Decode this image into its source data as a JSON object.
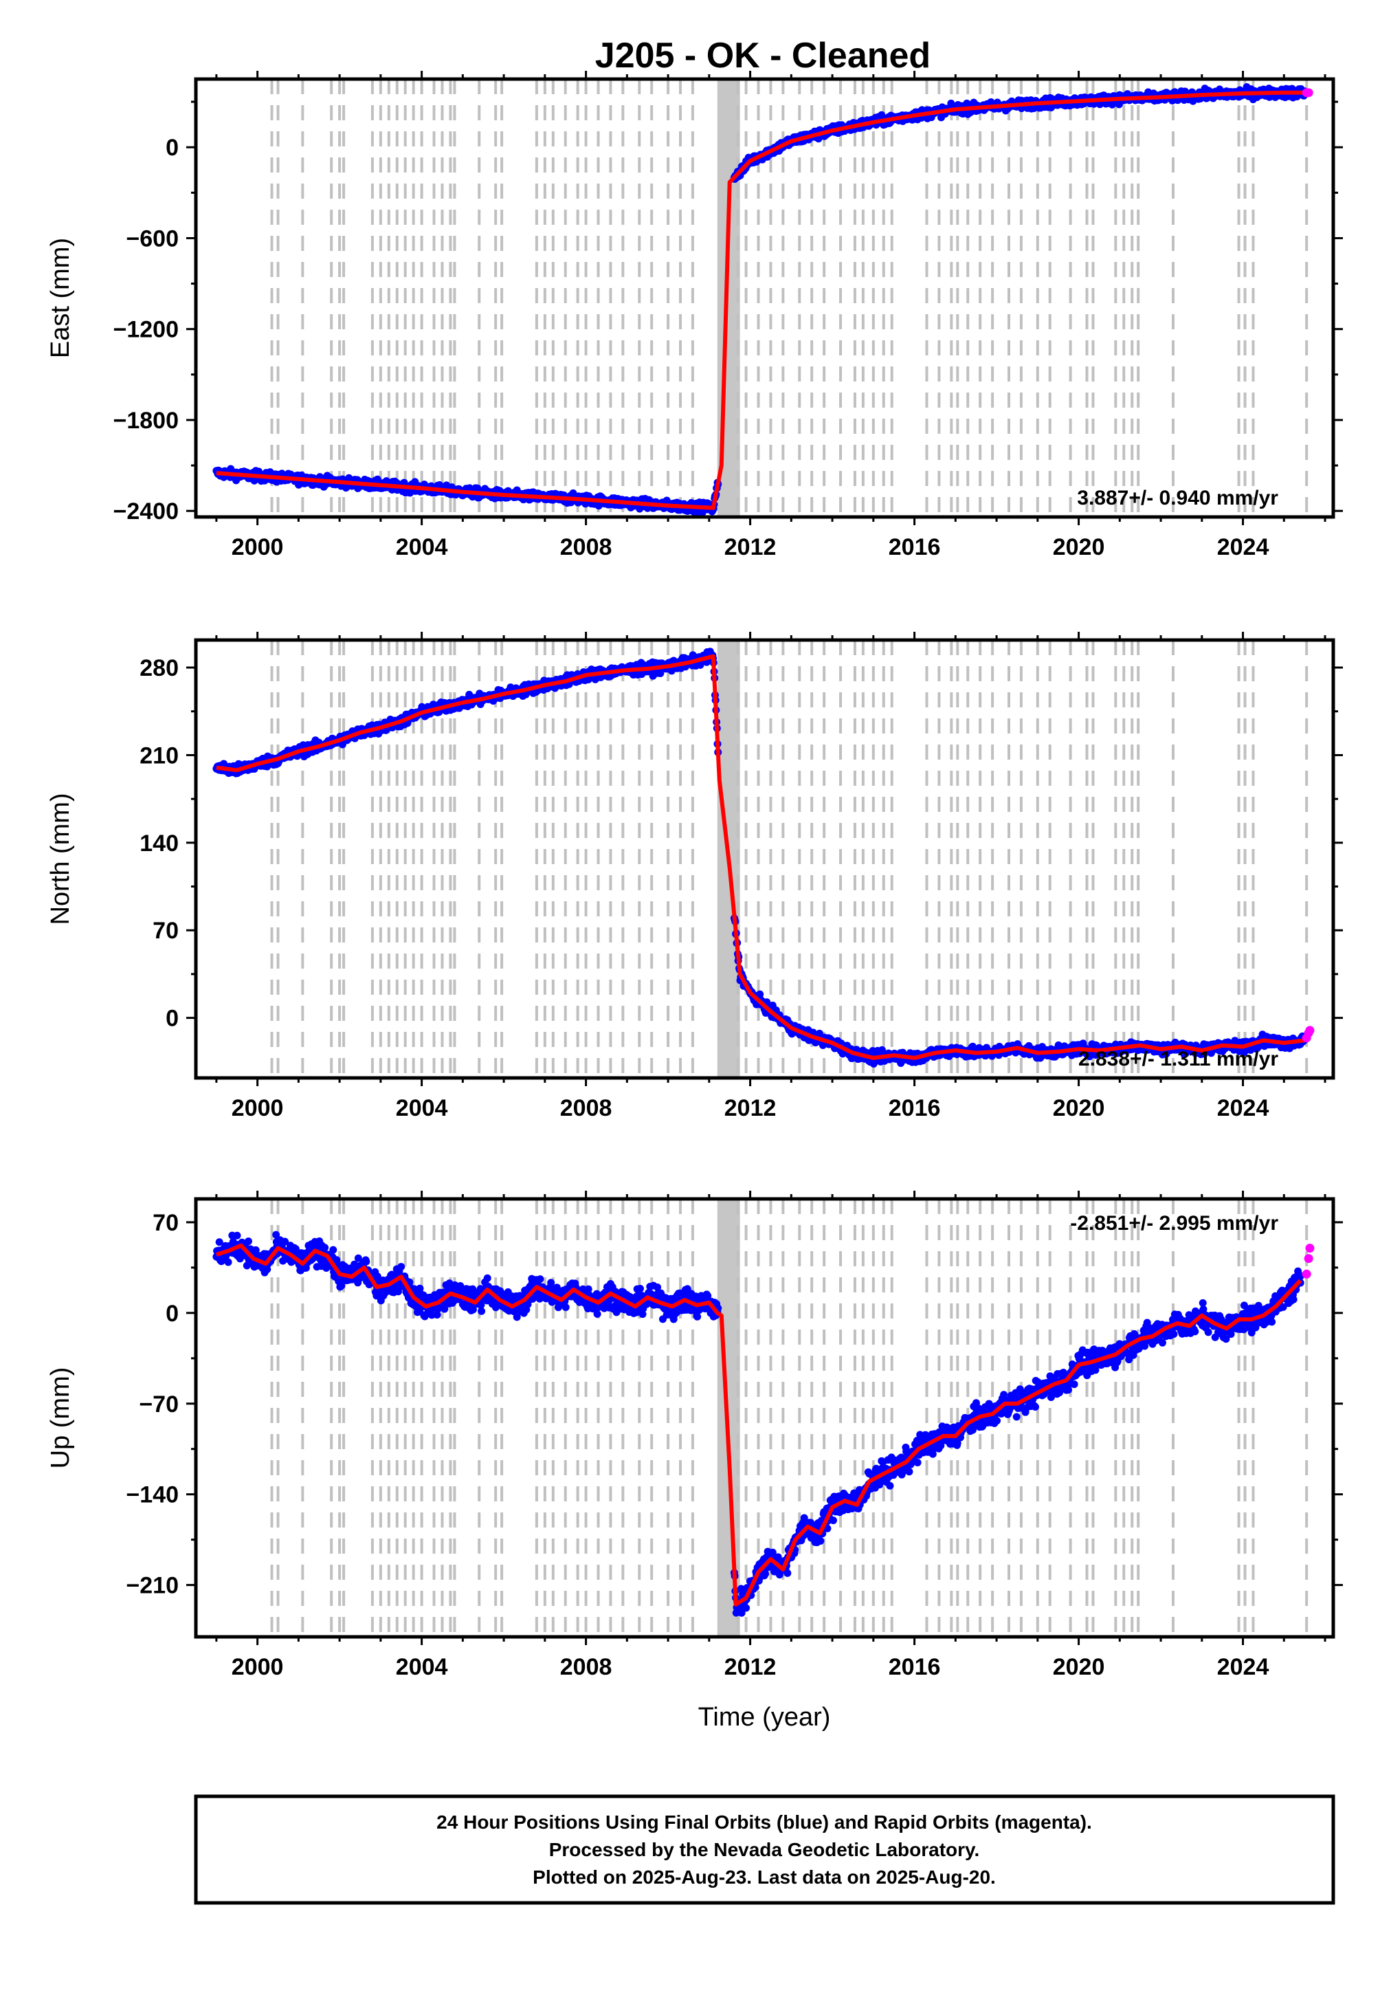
{
  "figure": {
    "title": "J205  - OK - Cleaned",
    "xlabel": "Time (year)",
    "footer": [
      "24 Hour Positions Using Final Orbits (blue) and Rapid Orbits (magenta).",
      "Processed by the Nevada Geodetic Laboratory.",
      "Plotted on 2025-Aug-23. Last data on 2025-Aug-20."
    ]
  },
  "colors": {
    "final_orbits": "#0000ff",
    "rapid_orbits": "#ff00ff",
    "model_fit": "#ff0000",
    "event_lines": "#c0c0c0"
  },
  "event_lines_years": [
    2000.35,
    2000.5,
    2001.1,
    2001.8,
    2002.0,
    2002.1,
    2002.8,
    2003.0,
    2003.2,
    2003.4,
    2003.6,
    2003.8,
    2004.0,
    2004.3,
    2004.5,
    2004.7,
    2004.8,
    2005.4,
    2005.8,
    2005.95,
    2006.8,
    2007.0,
    2007.2,
    2007.5,
    2007.8,
    2008.0,
    2008.3,
    2008.6,
    2008.9,
    2009.3,
    2009.6,
    2010.0,
    2010.3,
    2010.6,
    2011.7,
    2011.9,
    2012.2,
    2012.5,
    2012.8,
    2013.2,
    2013.5,
    2013.8,
    2014.2,
    2014.55,
    2014.75,
    2015.0,
    2015.25,
    2015.45,
    2016.3,
    2016.6,
    2016.9,
    2017.05,
    2017.3,
    2017.6,
    2017.9,
    2018.3,
    2018.6,
    2019.0,
    2019.3,
    2019.8,
    2020.2,
    2020.35,
    2020.9,
    2021.1,
    2021.3,
    2021.45,
    2022.3,
    2023.9,
    2024.05,
    2024.25,
    2025.55
  ],
  "chart_data": [
    {
      "type": "scatter",
      "component": "East",
      "ylabel": "East (mm)",
      "xlim": [
        1998.5,
        2026.2
      ],
      "ylim": [
        -2440,
        450
      ],
      "xticks": [
        2000,
        2004,
        2008,
        2012,
        2016,
        2020,
        2024
      ],
      "yticks": [
        0,
        -600,
        -1200,
        -1800,
        -2400
      ],
      "rate_label": "3.887+/- 0.940 mm/yr",
      "rate_position": "bottom-right",
      "series": [
        {
          "name": "Final Orbits (blue)",
          "x": [
            1999.0,
            2000.0,
            2001.0,
            2002.0,
            2003.0,
            2004.0,
            2005.0,
            2006.0,
            2007.0,
            2008.0,
            2009.0,
            2010.0,
            2011.1,
            2011.3,
            2011.5,
            2012.0,
            2013.0,
            2014.0,
            2015.0,
            2016.0,
            2017.0,
            2018.0,
            2019.0,
            2020.0,
            2021.0,
            2022.0,
            2023.0,
            2024.0,
            2025.0,
            2025.5
          ],
          "y": [
            -2150,
            -2170,
            -2190,
            -2210,
            -2230,
            -2250,
            -2275,
            -2295,
            -2310,
            -2325,
            -2345,
            -2365,
            -2380,
            -2100,
            -230,
            -90,
            40,
            110,
            165,
            210,
            250,
            270,
            290,
            305,
            320,
            330,
            345,
            355,
            360,
            360
          ]
        },
        {
          "name": "Rapid Orbits (magenta)",
          "x": [
            2025.55,
            2025.6
          ],
          "y": [
            360,
            360
          ]
        }
      ]
    },
    {
      "type": "scatter",
      "component": "North",
      "ylabel": "North (mm)",
      "xlim": [
        1998.5,
        2026.2
      ],
      "ylim": [
        -48,
        302
      ],
      "xticks": [
        2000,
        2004,
        2008,
        2012,
        2016,
        2020,
        2024
      ],
      "yticks": [
        280,
        210,
        140,
        70,
        0
      ],
      "rate_label": "2.838+/- 1.311 mm/yr",
      "rate_position": "bottom-right",
      "series": [
        {
          "name": "Final Orbits (blue)",
          "x": [
            1999.0,
            1999.5,
            2000.0,
            2000.5,
            2001.0,
            2001.5,
            2002.0,
            2002.5,
            2003.0,
            2003.5,
            2004.0,
            2004.5,
            2005.0,
            2005.5,
            2006.0,
            2006.5,
            2007.0,
            2007.5,
            2008.0,
            2008.5,
            2009.0,
            2009.5,
            2010.0,
            2010.5,
            2011.1,
            2011.25,
            2011.5,
            2011.75,
            2012.0,
            2012.5,
            2013.0,
            2013.5,
            2014.0,
            2014.5,
            2015.0,
            2015.5,
            2016.0,
            2016.5,
            2017.0,
            2017.5,
            2018.0,
            2018.5,
            2019.0,
            2019.5,
            2020.0,
            2020.5,
            2021.0,
            2021.5,
            2022.0,
            2022.5,
            2023.0,
            2023.5,
            2024.0,
            2024.5,
            2025.0,
            2025.5
          ],
          "y": [
            200,
            198,
            203,
            207,
            213,
            217,
            222,
            228,
            232,
            237,
            244,
            248,
            252,
            255,
            259,
            262,
            266,
            269,
            274,
            276,
            278,
            279,
            281,
            284,
            289,
            190,
            120,
            35,
            20,
            5,
            -8,
            -15,
            -20,
            -28,
            -32,
            -30,
            -32,
            -28,
            -26,
            -28,
            -27,
            -24,
            -28,
            -27,
            -25,
            -26,
            -24,
            -22,
            -25,
            -23,
            -26,
            -22,
            -23,
            -18,
            -20,
            -18
          ]
        },
        {
          "name": "Rapid Orbits (magenta)",
          "x": [
            2025.55,
            2025.6,
            2025.63
          ],
          "y": [
            -16,
            -12,
            -10
          ]
        }
      ]
    },
    {
      "type": "scatter",
      "component": "Up",
      "ylabel": "Up (mm)",
      "xlim": [
        1998.5,
        2026.2
      ],
      "ylim": [
        -250,
        88
      ],
      "xticks": [
        2000,
        2004,
        2008,
        2012,
        2016,
        2020,
        2024
      ],
      "yticks": [
        70,
        0,
        -70,
        -140,
        -210
      ],
      "rate_label": "-2.851+/- 2.995 mm/yr",
      "rate_position": "top-right",
      "series": [
        {
          "name": "Final Orbits (blue)",
          "x": [
            1999.0,
            1999.3,
            1999.6,
            1999.9,
            2000.2,
            2000.5,
            2000.8,
            2001.1,
            2001.4,
            2001.7,
            2002.0,
            2002.3,
            2002.6,
            2002.9,
            2003.2,
            2003.5,
            2003.8,
            2004.1,
            2004.4,
            2004.7,
            2005.0,
            2005.3,
            2005.6,
            2005.9,
            2006.2,
            2006.5,
            2006.8,
            2007.1,
            2007.4,
            2007.7,
            2008.0,
            2008.3,
            2008.6,
            2008.9,
            2009.2,
            2009.5,
            2009.8,
            2010.1,
            2010.4,
            2010.7,
            2011.0,
            2011.2,
            2011.3,
            2011.5,
            2011.65,
            2011.9,
            2012.2,
            2012.5,
            2012.8,
            2013.1,
            2013.4,
            2013.7,
            2014.0,
            2014.3,
            2014.6,
            2014.9,
            2015.2,
            2015.5,
            2015.8,
            2016.1,
            2016.4,
            2016.7,
            2017.0,
            2017.3,
            2017.6,
            2017.9,
            2018.2,
            2018.5,
            2018.8,
            2019.1,
            2019.4,
            2019.7,
            2020.0,
            2020.3,
            2020.6,
            2020.9,
            2021.2,
            2021.5,
            2021.8,
            2022.1,
            2022.4,
            2022.7,
            2023.0,
            2023.3,
            2023.6,
            2023.9,
            2024.2,
            2024.5,
            2024.8,
            2025.1,
            2025.4
          ],
          "y": [
            45,
            48,
            52,
            42,
            38,
            50,
            45,
            38,
            48,
            44,
            30,
            28,
            35,
            20,
            22,
            28,
            12,
            5,
            8,
            15,
            12,
            8,
            18,
            10,
            5,
            10,
            20,
            15,
            10,
            18,
            12,
            8,
            15,
            10,
            5,
            12,
            8,
            5,
            10,
            6,
            8,
            0,
            -2,
            -120,
            -225,
            -220,
            -200,
            -190,
            -198,
            -175,
            -165,
            -170,
            -150,
            -145,
            -148,
            -130,
            -125,
            -120,
            -115,
            -105,
            -100,
            -95,
            -95,
            -85,
            -80,
            -78,
            -70,
            -70,
            -65,
            -60,
            -55,
            -52,
            -40,
            -38,
            -35,
            -32,
            -25,
            -20,
            -18,
            -12,
            -8,
            -10,
            -2,
            -8,
            -12,
            -5,
            -5,
            -2,
            5,
            15,
            25
          ]
        },
        {
          "name": "Rapid Orbits (magenta)",
          "x": [
            2025.55,
            2025.6,
            2025.63
          ],
          "y": [
            30,
            42,
            50
          ]
        }
      ]
    }
  ]
}
